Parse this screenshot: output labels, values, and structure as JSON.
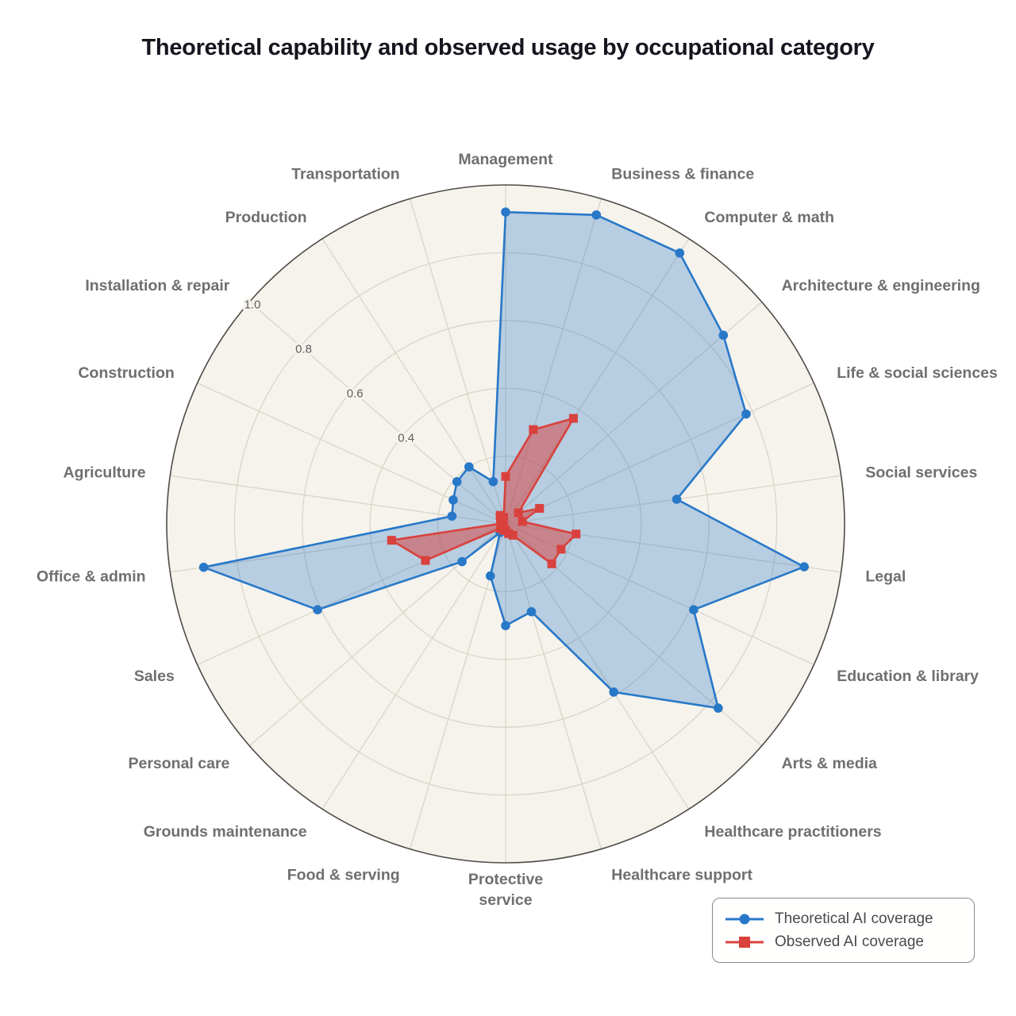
{
  "page": {
    "title": "Theoretical capability and observed usage by occupational category"
  },
  "legend": {
    "items": [
      {
        "label": "Theoretical AI coverage",
        "marker": "circle",
        "series": "theoretical"
      },
      {
        "label": "Observed AI coverage",
        "marker": "square",
        "series": "observed"
      }
    ]
  },
  "colors": {
    "theoretical_line": "#2878c8",
    "theoretical_fill": "rgba(40,120,200,0.30)",
    "observed_line": "#d9413d",
    "observed_fill": "rgba(217,65,61,0.52)",
    "grid_line": "#d9d5c8",
    "outer_ring": "#4f4c47",
    "polar_background": "#f5f3ec",
    "page_background": "#ffffff",
    "category_label": "#6f6f6f",
    "tick_label": "#5f5f5f",
    "title_text": "#17141f",
    "legend_text": "#4a4a4a",
    "legend_border": "#8a8a8a"
  },
  "chart_data": {
    "type": "radar",
    "title": "Theoretical capability and observed usage by occupational category",
    "categories": [
      "Management",
      "Business & finance",
      "Computer & math",
      "Architecture & engineering",
      "Life & social sciences",
      "Social services",
      "Legal",
      "Education & library",
      "Arts & media",
      "Healthcare practitioners",
      "Healthcare support",
      "Protective\nservice",
      "Food & serving",
      "Grounds maintenance",
      "Personal care",
      "Sales",
      "Office & admin",
      "Agriculture",
      "Construction",
      "Installation & repair",
      "Production",
      "Transportation"
    ],
    "series": [
      {
        "name": "Theoretical AI coverage",
        "marker": "circle",
        "values": [
          0.92,
          0.95,
          0.95,
          0.85,
          0.78,
          0.51,
          0.89,
          0.61,
          0.83,
          0.59,
          0.27,
          0.3,
          0.16,
          0.03,
          0.17,
          0.61,
          0.9,
          0.16,
          0.17,
          0.19,
          0.2,
          0.13
        ]
      },
      {
        "name": "Observed AI coverage",
        "marker": "square",
        "values": [
          0.14,
          0.29,
          0.37,
          0.05,
          0.11,
          0.05,
          0.21,
          0.18,
          0.18,
          0.04,
          0.03,
          0.02,
          0.02,
          0.01,
          0.02,
          0.26,
          0.34,
          0.01,
          0.01,
          0.02,
          0.03,
          0.02
        ]
      }
    ],
    "rlim": [
      0,
      1.0
    ],
    "ring_step": 0.2,
    "radial_tick_labels": [
      "0.4",
      "0.6",
      "0.8",
      "1.0"
    ],
    "radial_tick_values": [
      0.4,
      0.6,
      0.8,
      1.0
    ],
    "tick_label_angle_deg": 139.1,
    "start_angle_deg": 90,
    "direction": "clockwise",
    "grid": true,
    "legend_position": "lower right"
  }
}
